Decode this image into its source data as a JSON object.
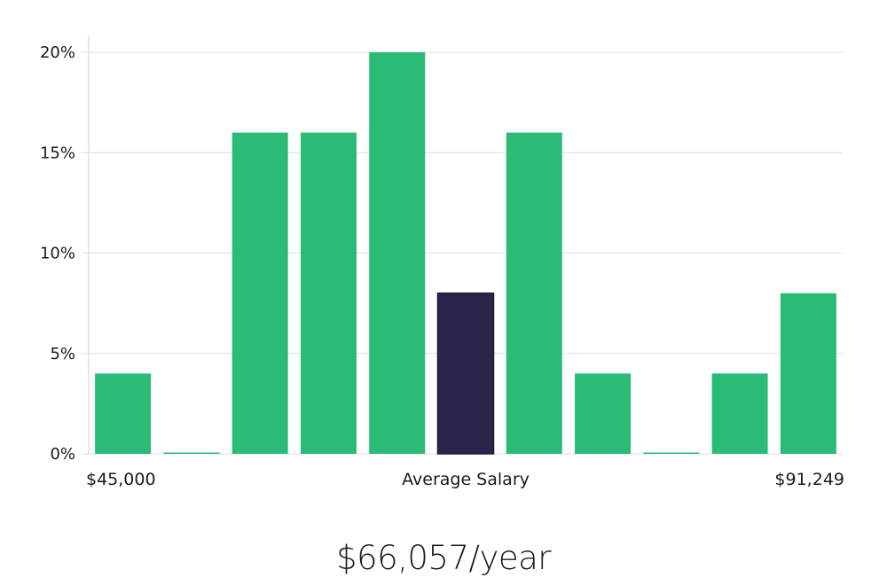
{
  "chart_data": {
    "type": "bar",
    "xlabel": "Average Salary",
    "x_range_labels": {
      "min": "$45,000",
      "max": "$91,249"
    },
    "y_ticks": [
      "0%",
      "5%",
      "10%",
      "15%",
      "20%"
    ],
    "ylim": [
      0,
      20
    ],
    "grid": true,
    "values": [
      4,
      0,
      16,
      16,
      20,
      8,
      16,
      4,
      0,
      4,
      8
    ],
    "highlight_index": 5,
    "colors": {
      "bar": "#2abb77",
      "highlight": "#29254a",
      "grid": "#dcdcdc",
      "axis": "#cfcfcf",
      "text": "#1a1a1a"
    }
  },
  "average_salary_text": "$66,057/year"
}
